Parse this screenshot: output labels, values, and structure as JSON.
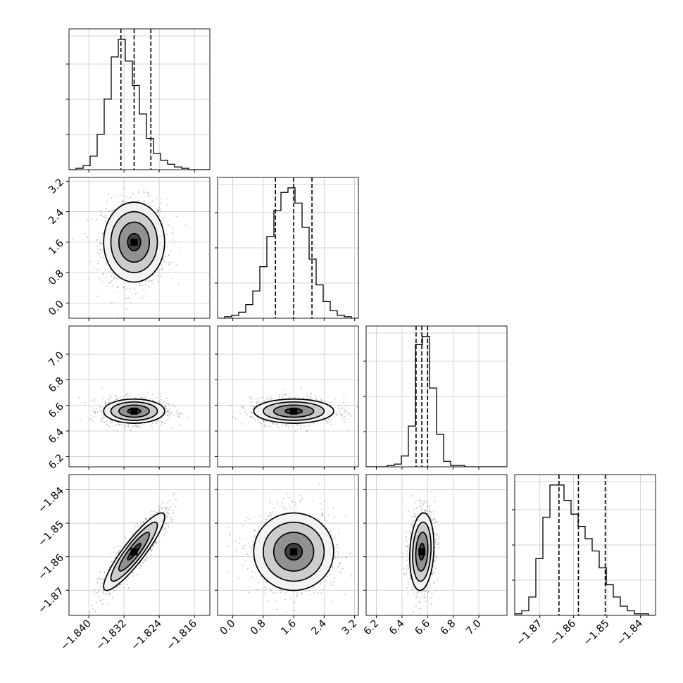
{
  "chart_data": {
    "type": "corner",
    "parameters": [
      {
        "range": [
          -1.8445,
          -1.8125
        ],
        "ticks": [
          -1.84,
          -1.832,
          -1.824,
          -1.816
        ],
        "tick_labels": [
          "−1.840",
          "−1.832",
          "−1.824",
          "−1.816"
        ],
        "mean": -1.8297,
        "sd": 0.0033,
        "quantiles": [
          -1.8327,
          -1.8297,
          -1.8259
        ],
        "hist_counts": [
          0,
          1,
          3,
          10,
          26,
          52,
          83,
          96,
          80,
          62,
          41,
          23,
          12,
          7,
          4,
          2,
          1,
          0,
          0,
          0
        ]
      },
      {
        "range": [
          -0.4,
          3.3
        ],
        "ticks": [
          0.0,
          0.8,
          1.6,
          2.4,
          3.2
        ],
        "tick_labels": [
          "0.0",
          "0.8",
          "1.6",
          "2.4",
          "3.2"
        ],
        "mean": 1.6,
        "sd": 0.5,
        "quantiles": [
          1.12,
          1.6,
          2.08
        ],
        "hist_counts": [
          0,
          1,
          2,
          4,
          9,
          18,
          34,
          54,
          71,
          83,
          86,
          76,
          60,
          39,
          22,
          11,
          5,
          2,
          1,
          0
        ]
      },
      {
        "range": [
          6.12,
          7.22
        ],
        "ticks": [
          6.2,
          6.4,
          6.6,
          6.8,
          7.0
        ],
        "tick_labels": [
          "6.2",
          "6.4",
          "6.6",
          "6.8",
          "7.0"
        ],
        "mean": 6.555,
        "sd": 0.045,
        "quantiles": [
          6.51,
          6.555,
          6.6
        ],
        "hist_counts": [
          0,
          0,
          0,
          1,
          2,
          8,
          30,
          90,
          96,
          58,
          24,
          4,
          1,
          1,
          0,
          0,
          0,
          0,
          0,
          0
        ]
      },
      {
        "range": [
          -1.8775,
          -1.8355
        ],
        "ticks": [
          -1.87,
          -1.86,
          -1.85,
          -1.84
        ],
        "tick_labels": [
          "−1.87",
          "−1.86",
          "−1.85",
          "−1.84"
        ],
        "mean": -1.8585,
        "sd": 0.0055,
        "quantiles": [
          -1.8643,
          -1.8585,
          -1.8505
        ],
        "hist_counts": [
          1,
          3,
          12,
          37,
          64,
          85,
          85,
          75,
          66,
          58,
          50,
          42,
          31,
          20,
          12,
          6,
          3,
          1,
          1,
          0
        ]
      }
    ],
    "correlations": {
      "1-0": 0.0,
      "2-0": 0.0,
      "2-1": 0.0,
      "3-0": 0.9,
      "3-1": 0.0,
      "3-2": 0.15
    },
    "grid": true,
    "quantile_lines": "dashed",
    "contour_levels": 4
  }
}
